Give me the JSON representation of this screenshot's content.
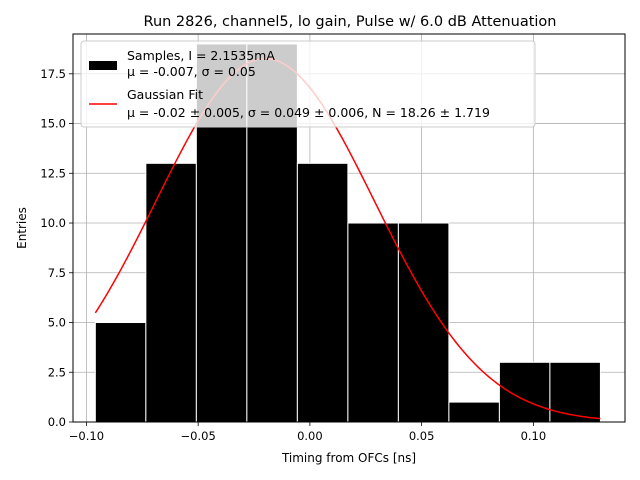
{
  "chart_data": {
    "type": "bar",
    "title": "Run 2826, channel5, lo gain, Pulse w/ 6.0 dB Attenuation",
    "xlabel": "Timing from OFCs [ns]",
    "ylabel": "Entries",
    "xlim": [
      -0.106,
      0.141
    ],
    "ylim": [
      0,
      19.5
    ],
    "grid": true,
    "legend_position": "top-left",
    "bins": [
      {
        "x0": -0.096,
        "x1": -0.0734,
        "count": 5
      },
      {
        "x0": -0.0734,
        "x1": -0.0508,
        "count": 13
      },
      {
        "x0": -0.0508,
        "x1": -0.0282,
        "count": 19
      },
      {
        "x0": -0.0282,
        "x1": -0.0056,
        "count": 19
      },
      {
        "x0": -0.0056,
        "x1": 0.017,
        "count": 13
      },
      {
        "x0": 0.017,
        "x1": 0.0396,
        "count": 10
      },
      {
        "x0": 0.0396,
        "x1": 0.0622,
        "count": 10
      },
      {
        "x0": 0.0622,
        "x1": 0.0848,
        "count": 1
      },
      {
        "x0": 0.0848,
        "x1": 0.1074,
        "count": 3
      },
      {
        "x0": 0.1074,
        "x1": 0.13,
        "count": 3
      }
    ],
    "x_ticks": [
      {
        "value": -0.1,
        "label": "−0.10"
      },
      {
        "value": -0.05,
        "label": "−0.05"
      },
      {
        "value": 0.0,
        "label": "0.00"
      },
      {
        "value": 0.05,
        "label": "0.05"
      },
      {
        "value": 0.1,
        "label": "0.10"
      }
    ],
    "y_ticks": [
      {
        "value": 0.0,
        "label": "0.0"
      },
      {
        "value": 2.5,
        "label": "2.5"
      },
      {
        "value": 5.0,
        "label": "5.0"
      },
      {
        "value": 7.5,
        "label": "7.5"
      },
      {
        "value": 10.0,
        "label": "10.0"
      },
      {
        "value": 12.5,
        "label": "12.5"
      },
      {
        "value": 15.0,
        "label": "15.0"
      },
      {
        "value": 17.5,
        "label": "17.5"
      }
    ],
    "fit": {
      "mu": -0.02,
      "sigma": 0.049,
      "N": 18.26,
      "x_range": [
        -0.096,
        0.13
      ],
      "color": "#ff0000"
    },
    "legend": {
      "samples_line1": "Samples, I = 2.1535mA",
      "samples_line2": "μ = -0.007, σ = 0.05",
      "fit_line1": "Gaussian Fit",
      "fit_line2": "μ = -0.02 ± 0.005, σ = 0.049 ± 0.006, N = 18.26 ± 1.719"
    },
    "colors": {
      "bars": "#000000",
      "bar_edge": "#ffffff",
      "grid": "#b0b0b0",
      "fit": "#ff0000"
    }
  }
}
